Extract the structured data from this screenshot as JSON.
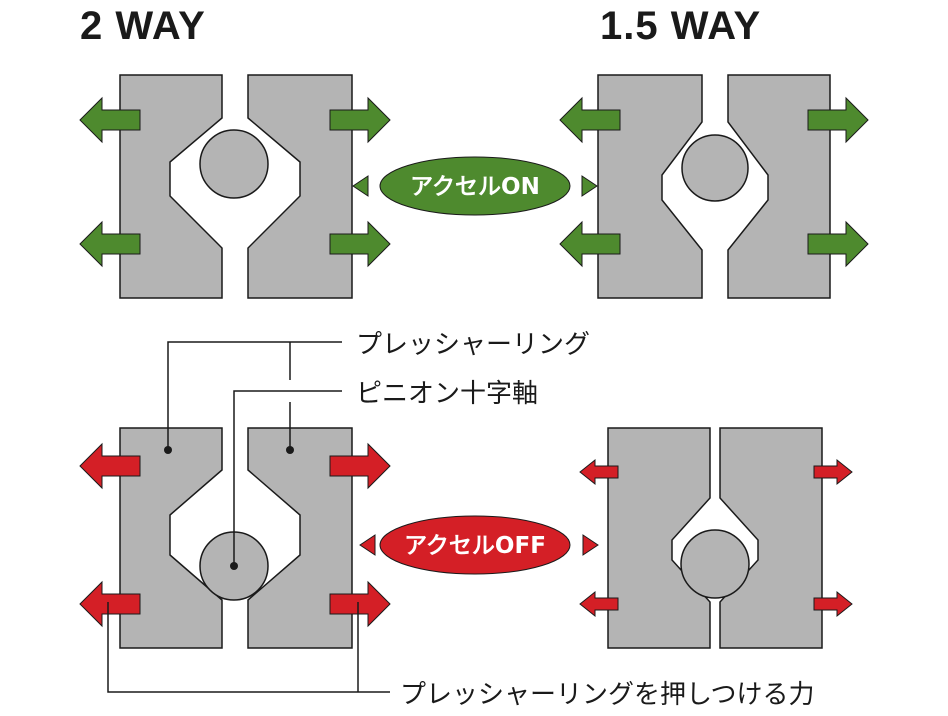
{
  "titles": {
    "two_way": "2 WAY",
    "one_five_way": "1.5 WAY"
  },
  "badges": {
    "accel_on": "アクセルON",
    "accel_off": "アクセルOFF"
  },
  "callouts": {
    "pressure_ring": "プレッシャーリング",
    "pinion_cross_shaft": "ピニオン十字軸",
    "ring_pressing_force": "プレッシャーリングを押しつける力"
  },
  "colors": {
    "block_fill": "#b4b4b4",
    "outline": "#1a1a1a",
    "accel_on_green": "#4e8a2e",
    "accel_off_red": "#d41f26",
    "background": "#ffffff"
  },
  "icons": {
    "force_arrow_on": "green-arrow-icon",
    "force_arrow_off": "red-arrow-icon",
    "pill_pointer": "triangle-pointer-icon"
  }
}
